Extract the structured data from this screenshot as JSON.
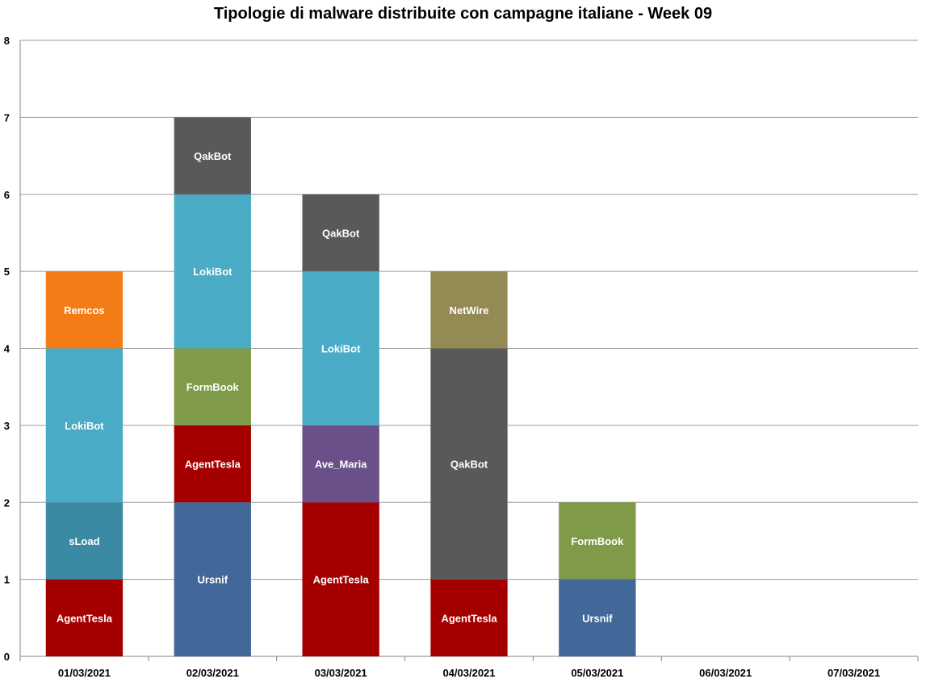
{
  "chart_data": {
    "type": "bar",
    "stacked": true,
    "title": "Tipologie di malware distribuite con campagne italiane - Week 09",
    "categories": [
      "01/03/2021",
      "02/03/2021",
      "03/03/2021",
      "04/03/2021",
      "05/03/2021",
      "06/03/2021",
      "07/03/2021"
    ],
    "ylim": [
      0,
      8
    ],
    "yticks": [
      0,
      1,
      2,
      3,
      4,
      5,
      6,
      7,
      8
    ],
    "grid": true,
    "legend": "none",
    "colors": {
      "AgentTesla": "#a50000",
      "sLoad": "#3b8aa3",
      "LokiBot": "#4aabc6",
      "Remcos": "#f47c16",
      "Ursnif": "#416898",
      "FormBook": "#7f9a48",
      "QakBot": "#595959",
      "Ave_Maria": "#6a5088",
      "NetWire": "#948a54"
    },
    "stacks": [
      [
        {
          "name": "AgentTesla",
          "value": 1
        },
        {
          "name": "sLoad",
          "value": 1
        },
        {
          "name": "LokiBot",
          "value": 2
        },
        {
          "name": "Remcos",
          "value": 1
        }
      ],
      [
        {
          "name": "Ursnif",
          "value": 2
        },
        {
          "name": "AgentTesla",
          "value": 1
        },
        {
          "name": "FormBook",
          "value": 1
        },
        {
          "name": "LokiBot",
          "value": 2
        },
        {
          "name": "QakBot",
          "value": 1
        }
      ],
      [
        {
          "name": "AgentTesla",
          "value": 2
        },
        {
          "name": "Ave_Maria",
          "value": 1
        },
        {
          "name": "LokiBot",
          "value": 2
        },
        {
          "name": "QakBot",
          "value": 1
        }
      ],
      [
        {
          "name": "AgentTesla",
          "value": 1
        },
        {
          "name": "QakBot",
          "value": 3
        },
        {
          "name": "NetWire",
          "value": 1
        }
      ],
      [
        {
          "name": "Ursnif",
          "value": 1
        },
        {
          "name": "FormBook",
          "value": 1
        }
      ],
      [],
      []
    ]
  }
}
